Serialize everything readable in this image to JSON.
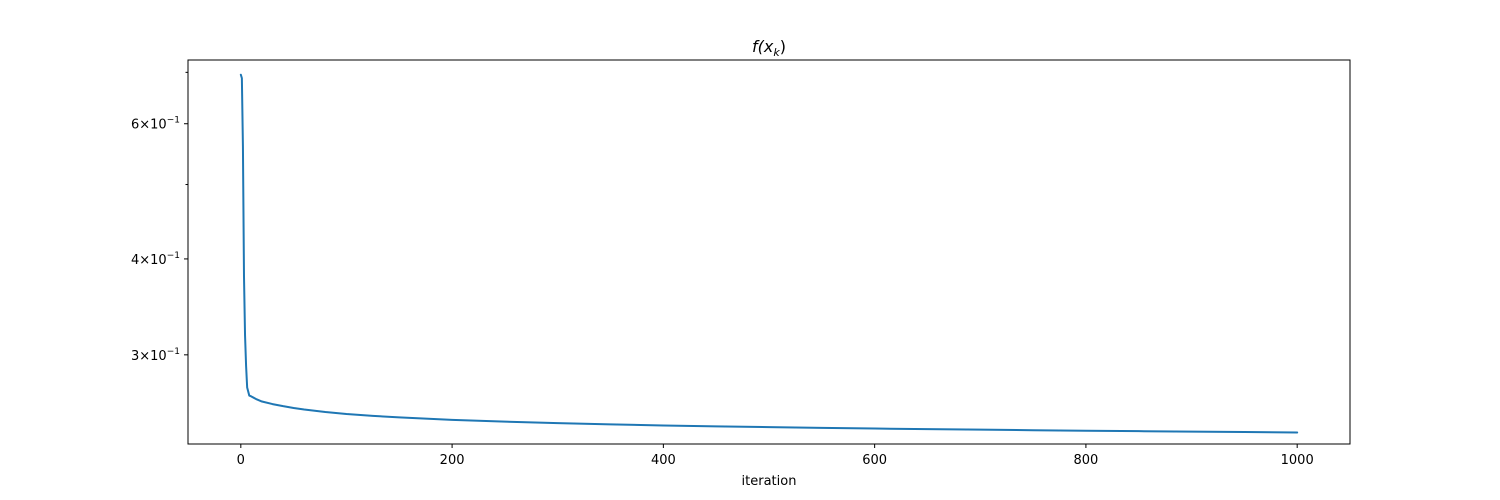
{
  "chart_data": {
    "type": "line",
    "title": "f(x_k)",
    "title_main": "f(x",
    "title_sub": "k",
    "title_end": ")",
    "xlabel": "iteration",
    "ylabel": "",
    "xlim": [
      -50,
      1050
    ],
    "ylim": [
      0.2296,
      0.7264
    ],
    "y_scale": "log",
    "grid": false,
    "x_ticks": [
      0,
      200,
      400,
      600,
      800,
      1000
    ],
    "y_major_ticks": [
      {
        "value": 0.6,
        "mantissa": "6",
        "base": "10",
        "exp": "−1"
      },
      {
        "value": 0.4,
        "mantissa": "4",
        "base": "10",
        "exp": "−1"
      },
      {
        "value": 0.3,
        "mantissa": "3",
        "base": "10",
        "exp": "−1"
      }
    ],
    "y_minor_ticks": [
      0.7,
      0.5
    ],
    "series": [
      {
        "color": "#1f77b4",
        "x": [
          0,
          1,
          2,
          3,
          4,
          5,
          6,
          8,
          10,
          15,
          20,
          30,
          40,
          50,
          60,
          80,
          100,
          125,
          150,
          200,
          250,
          300,
          350,
          400,
          450,
          500,
          550,
          600,
          650,
          700,
          750,
          800,
          850,
          900,
          950,
          1000
        ],
        "y": [
          0.695,
          0.688,
          0.56,
          0.38,
          0.318,
          0.29,
          0.272,
          0.2655,
          0.2648,
          0.2625,
          0.2608,
          0.2588,
          0.2572,
          0.2558,
          0.2546,
          0.2527,
          0.2512,
          0.2498,
          0.2487,
          0.2468,
          0.2455,
          0.2444,
          0.2435,
          0.2427,
          0.2421,
          0.2415,
          0.241,
          0.2405,
          0.2401,
          0.2397,
          0.2393,
          0.2389,
          0.2386,
          0.2383,
          0.238,
          0.2377
        ]
      }
    ]
  }
}
